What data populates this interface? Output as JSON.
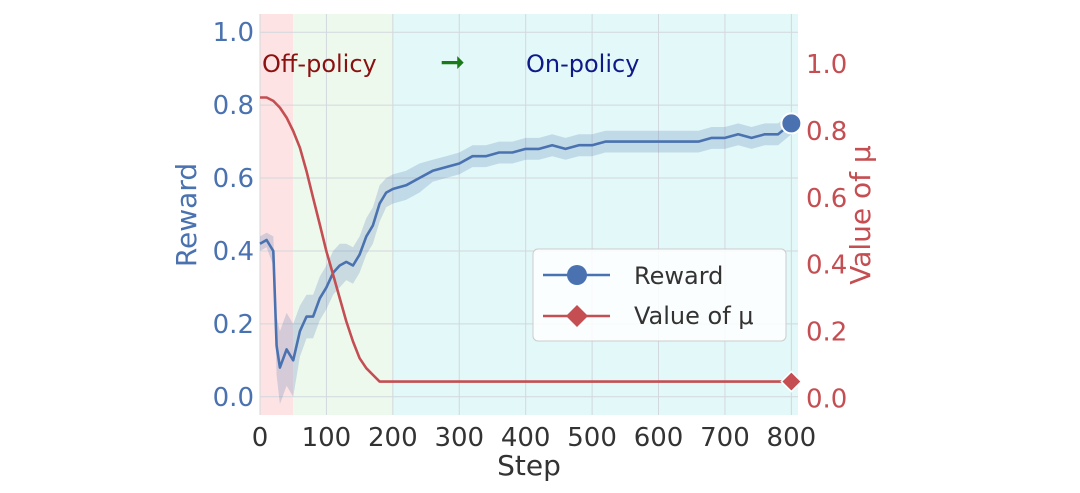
{
  "chart_data": {
    "type": "line",
    "xlabel": "Step",
    "ylabel_left": "Reward",
    "ylabel_right": "Value of μ",
    "xlim": [
      0,
      810
    ],
    "ylim_left": [
      -0.05,
      1.05
    ],
    "ylim_right": [
      -0.05,
      1.15
    ],
    "xticks": [
      0,
      100,
      200,
      300,
      400,
      500,
      600,
      700,
      800
    ],
    "yticks_left": [
      0.0,
      0.2,
      0.4,
      0.6,
      0.8,
      1.0
    ],
    "yticks_right": [
      0.0,
      0.2,
      0.4,
      0.6,
      0.8,
      1.0
    ],
    "grid": true,
    "legend_position": "center-right",
    "phases": [
      {
        "label": "Off-policy",
        "x_start": 0,
        "x_end": 50,
        "color": "#fde3e3",
        "label_color": "#8b1010"
      },
      {
        "label": "",
        "x_start": 50,
        "x_end": 200,
        "color": "#eef9ee",
        "label_color": ""
      },
      {
        "label": "On-policy",
        "x_start": 200,
        "x_end": 810,
        "color": "#e3f8f8",
        "label_color": "#0e1a8a"
      }
    ],
    "arrow": {
      "symbol": "➞",
      "color": "#1a7a1a"
    },
    "series": [
      {
        "name": "Reward",
        "axis": "left",
        "color": "#4a72b0",
        "marker": "circle",
        "x": [
          0,
          10,
          20,
          25,
          30,
          40,
          50,
          60,
          70,
          80,
          90,
          100,
          110,
          120,
          130,
          140,
          150,
          160,
          170,
          180,
          190,
          200,
          220,
          240,
          260,
          280,
          300,
          320,
          340,
          360,
          380,
          400,
          420,
          440,
          460,
          480,
          500,
          520,
          540,
          560,
          580,
          600,
          620,
          640,
          660,
          680,
          700,
          720,
          740,
          760,
          780,
          800
        ],
        "values": [
          0.42,
          0.43,
          0.4,
          0.14,
          0.08,
          0.13,
          0.1,
          0.18,
          0.22,
          0.22,
          0.27,
          0.3,
          0.34,
          0.36,
          0.37,
          0.36,
          0.39,
          0.44,
          0.47,
          0.53,
          0.56,
          0.57,
          0.58,
          0.6,
          0.62,
          0.63,
          0.64,
          0.66,
          0.66,
          0.67,
          0.67,
          0.68,
          0.68,
          0.69,
          0.68,
          0.69,
          0.69,
          0.7,
          0.7,
          0.7,
          0.7,
          0.7,
          0.7,
          0.7,
          0.7,
          0.71,
          0.71,
          0.72,
          0.71,
          0.72,
          0.72,
          0.75
        ],
        "band": [
          0.02,
          0.02,
          0.04,
          0.08,
          0.1,
          0.1,
          0.1,
          0.07,
          0.06,
          0.06,
          0.06,
          0.06,
          0.06,
          0.06,
          0.05,
          0.05,
          0.05,
          0.05,
          0.05,
          0.05,
          0.04,
          0.04,
          0.04,
          0.04,
          0.03,
          0.03,
          0.03,
          0.03,
          0.03,
          0.03,
          0.03,
          0.03,
          0.03,
          0.03,
          0.03,
          0.03,
          0.03,
          0.03,
          0.03,
          0.03,
          0.03,
          0.03,
          0.03,
          0.03,
          0.03,
          0.03,
          0.03,
          0.03,
          0.03,
          0.03,
          0.03,
          0.03
        ]
      },
      {
        "name": "Value of μ",
        "axis": "right",
        "color": "#c44e52",
        "marker": "diamond",
        "x": [
          0,
          10,
          20,
          30,
          40,
          50,
          60,
          70,
          80,
          90,
          100,
          110,
          120,
          130,
          140,
          150,
          160,
          170,
          180,
          190,
          200,
          250,
          300,
          400,
          500,
          600,
          700,
          800
        ],
        "values": [
          0.9,
          0.9,
          0.89,
          0.87,
          0.84,
          0.8,
          0.75,
          0.68,
          0.6,
          0.52,
          0.44,
          0.37,
          0.3,
          0.23,
          0.17,
          0.12,
          0.09,
          0.07,
          0.05,
          0.05,
          0.05,
          0.05,
          0.05,
          0.05,
          0.05,
          0.05,
          0.05,
          0.05
        ]
      }
    ]
  }
}
